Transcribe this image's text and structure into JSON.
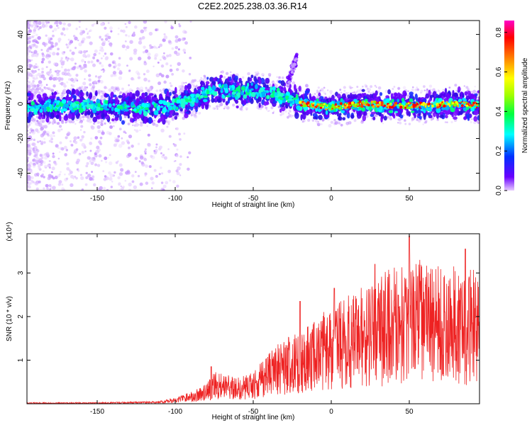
{
  "title": "C2E2.2025.238.03.36.R14",
  "chart_data": [
    {
      "type": "heatmap",
      "xlabel": "Height of straight line (km)",
      "ylabel": "Frequency (Hz)",
      "xlim": [
        -195,
        95
      ],
      "ylim": [
        -50,
        48
      ],
      "xticks": [
        -150,
        -100,
        -50,
        0,
        50
      ],
      "yticks": [
        -40,
        -20,
        0,
        20,
        40
      ],
      "colorbar": {
        "label": "Normalized spectral amplitude",
        "range": [
          0.0,
          0.86
        ],
        "ticks": [
          0.0,
          0.2,
          0.4,
          0.6,
          0.8
        ],
        "colors": [
          "#e8ccff",
          "#6a00ff",
          "#0030ff",
          "#00ffff",
          "#00ff40",
          "#a0ff00",
          "#ffff00",
          "#ff8000",
          "#ff0000",
          "#ff00c8"
        ]
      },
      "ridge": {
        "x": [
          -195,
          -170,
          -150,
          -130,
          -110,
          -90,
          -75,
          -60,
          -50,
          -40,
          -30,
          -25,
          -20,
          0,
          20,
          40,
          60,
          80,
          95
        ],
        "y": [
          -2,
          -1,
          -1,
          -2,
          -2,
          2,
          8,
          7,
          8,
          6,
          4,
          2,
          0,
          -2,
          0,
          -1,
          -1,
          0,
          -1
        ]
      },
      "branch": {
        "x": [
          -28,
          -25,
          -22
        ],
        "y": [
          12,
          20,
          26
        ]
      }
    },
    {
      "type": "line",
      "xlabel": "Height of straight line (km)",
      "ylabel": "SNR (10 * v/v)",
      "yscale_note": "(x10⁴)",
      "xlim": [
        -195,
        95
      ],
      "ylim": [
        0,
        3.9
      ],
      "xticks": [
        -150,
        -100,
        -50,
        0,
        50
      ],
      "yticks": [
        1,
        2,
        3
      ],
      "color": "#ee2222",
      "envelope": {
        "x": [
          -195,
          -150,
          -110,
          -100,
          -90,
          -80,
          -75,
          -60,
          -50,
          -40,
          -30,
          -20,
          -10,
          0,
          10,
          20,
          30,
          40,
          50,
          60,
          70,
          80,
          95
        ],
        "y": [
          0.02,
          0.02,
          0.04,
          0.1,
          0.18,
          0.3,
          0.5,
          0.4,
          0.5,
          0.8,
          1.0,
          1.1,
          1.3,
          1.5,
          1.65,
          1.8,
          1.95,
          2.1,
          2.2,
          2.2,
          2.1,
          2.1,
          2.1
        ]
      },
      "peaks": [
        {
          "x": -77,
          "y": 0.85
        },
        {
          "x": -20,
          "y": 2.35
        },
        {
          "x": 2,
          "y": 2.65
        },
        {
          "x": 28,
          "y": 3.2
        },
        {
          "x": 50,
          "y": 3.85
        },
        {
          "x": 86,
          "y": 3.55
        }
      ]
    }
  ]
}
